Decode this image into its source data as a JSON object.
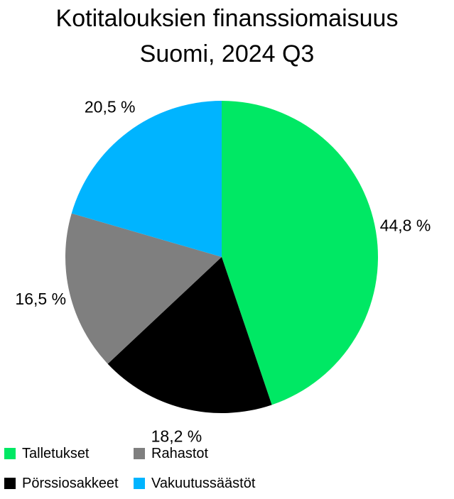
{
  "title": {
    "line1": "Kotitalouksien finanssiomaisuus",
    "line2": "Suomi, 2024 Q3"
  },
  "chart_data": {
    "type": "pie",
    "title": "Kotitalouksien finanssiomaisuus Suomi, 2024 Q3",
    "start_angle_deg": 0,
    "direction": "clockwise",
    "legend_placement": "bottom-left",
    "slices": [
      {
        "name": "Talletukset",
        "value": 44.8,
        "label": "44,8 %",
        "color": "#00e864"
      },
      {
        "name": "Pörssiosakkeet",
        "value": 18.2,
        "label": "18,2 %",
        "color": "#000000"
      },
      {
        "name": "Rahastot",
        "value": 16.5,
        "label": "16,5 %",
        "color": "#7f7f7f"
      },
      {
        "name": "Vakuutussäästöt",
        "value": 20.5,
        "label": "20,5 %",
        "color": "#00b4ff"
      }
    ]
  },
  "legend": {
    "items": [
      {
        "label": "Talletukset",
        "color": "#00e864"
      },
      {
        "label": "Rahastot",
        "color": "#7f7f7f"
      },
      {
        "label": "Pörssiosakkeet",
        "color": "#000000"
      },
      {
        "label": "Vakuutussäästöt",
        "color": "#00b4ff"
      }
    ]
  }
}
